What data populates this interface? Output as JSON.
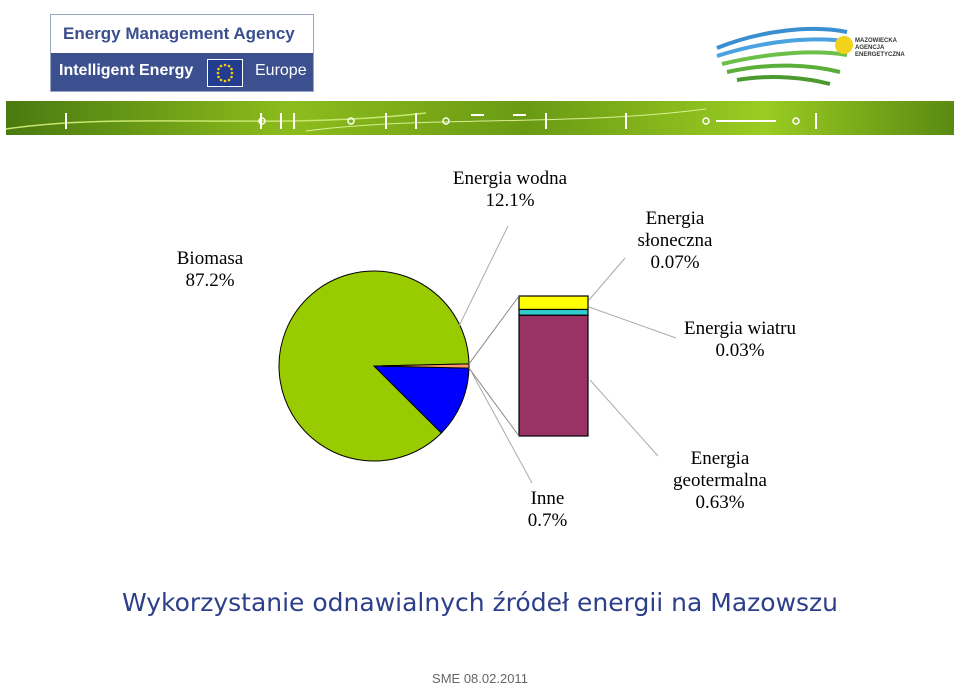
{
  "header": {
    "agency_name": "Energy Management Agency",
    "program_left": "Intelligent Energy",
    "program_right": "Europe",
    "partner_logo_text": [
      "MAZOWIECKA",
      "AGENCJA",
      "ENERGETYCZNA"
    ]
  },
  "colors": {
    "biomasa": "#99cc00",
    "wodna": "#0000ff",
    "inne": "#ff9966",
    "geotermalna": "#993366",
    "wiatru": "#33cccc",
    "sloneczna": "#ffff00",
    "title": "#2e3f8a",
    "agency_blue": "#3c4f8e"
  },
  "chart_data": {
    "type": "pie",
    "title": "Wykorzystanie odnawialnych źródeł energii na Mazowszu",
    "slices": [
      {
        "key": "biomasa",
        "label_lines": [
          "Biomasa",
          "87.2%"
        ],
        "value": 87.2
      },
      {
        "key": "wodna",
        "label_lines": [
          "Energia wodna",
          "12.1%"
        ],
        "value": 12.1
      },
      {
        "key": "inne",
        "label_lines": [
          "Inne",
          "0.7%"
        ],
        "value": 0.7
      }
    ],
    "breakdown_of": "inne",
    "breakdown": [
      {
        "key": "geotermalna",
        "label_lines": [
          "Energia",
          "geotermalna",
          "0.63%"
        ],
        "value": 0.63
      },
      {
        "key": "wiatru",
        "label_lines": [
          "Energia wiatru",
          "0.03%"
        ],
        "value": 0.03
      },
      {
        "key": "sloneczna",
        "label_lines": [
          "Energia",
          "słoneczna",
          "0.07%"
        ],
        "value": 0.07
      }
    ]
  },
  "footer": {
    "text": "SME 08.02.2011"
  }
}
